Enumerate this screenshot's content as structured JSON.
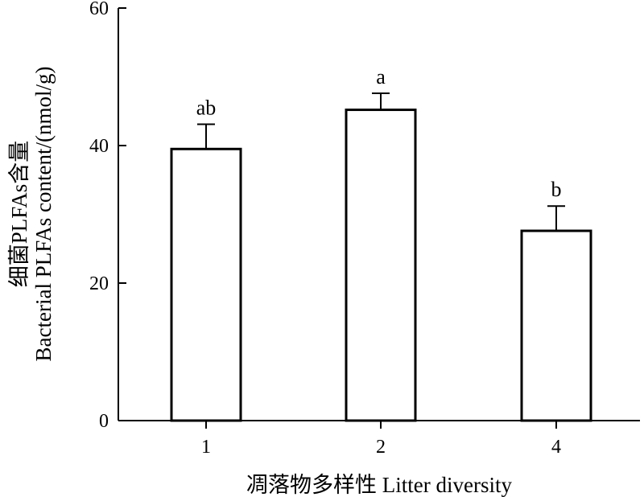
{
  "chart_data": {
    "type": "bar",
    "categories": [
      "1",
      "2",
      "4"
    ],
    "values": [
      39.5,
      45.2,
      27.6
    ],
    "errors": [
      3.6,
      2.4,
      3.6
    ],
    "significance_labels": [
      "ab",
      "a",
      "b"
    ],
    "xlabel": "凋落物多样性 Litter diversity",
    "ylabel_line1": "细菌PLFAs含量",
    "ylabel_line2": "Bacterial PLFAs content/(nmol/g)",
    "ylim": [
      0,
      60
    ],
    "yticks": [
      0,
      20,
      40,
      60
    ],
    "grid": false,
    "legend": "none"
  }
}
